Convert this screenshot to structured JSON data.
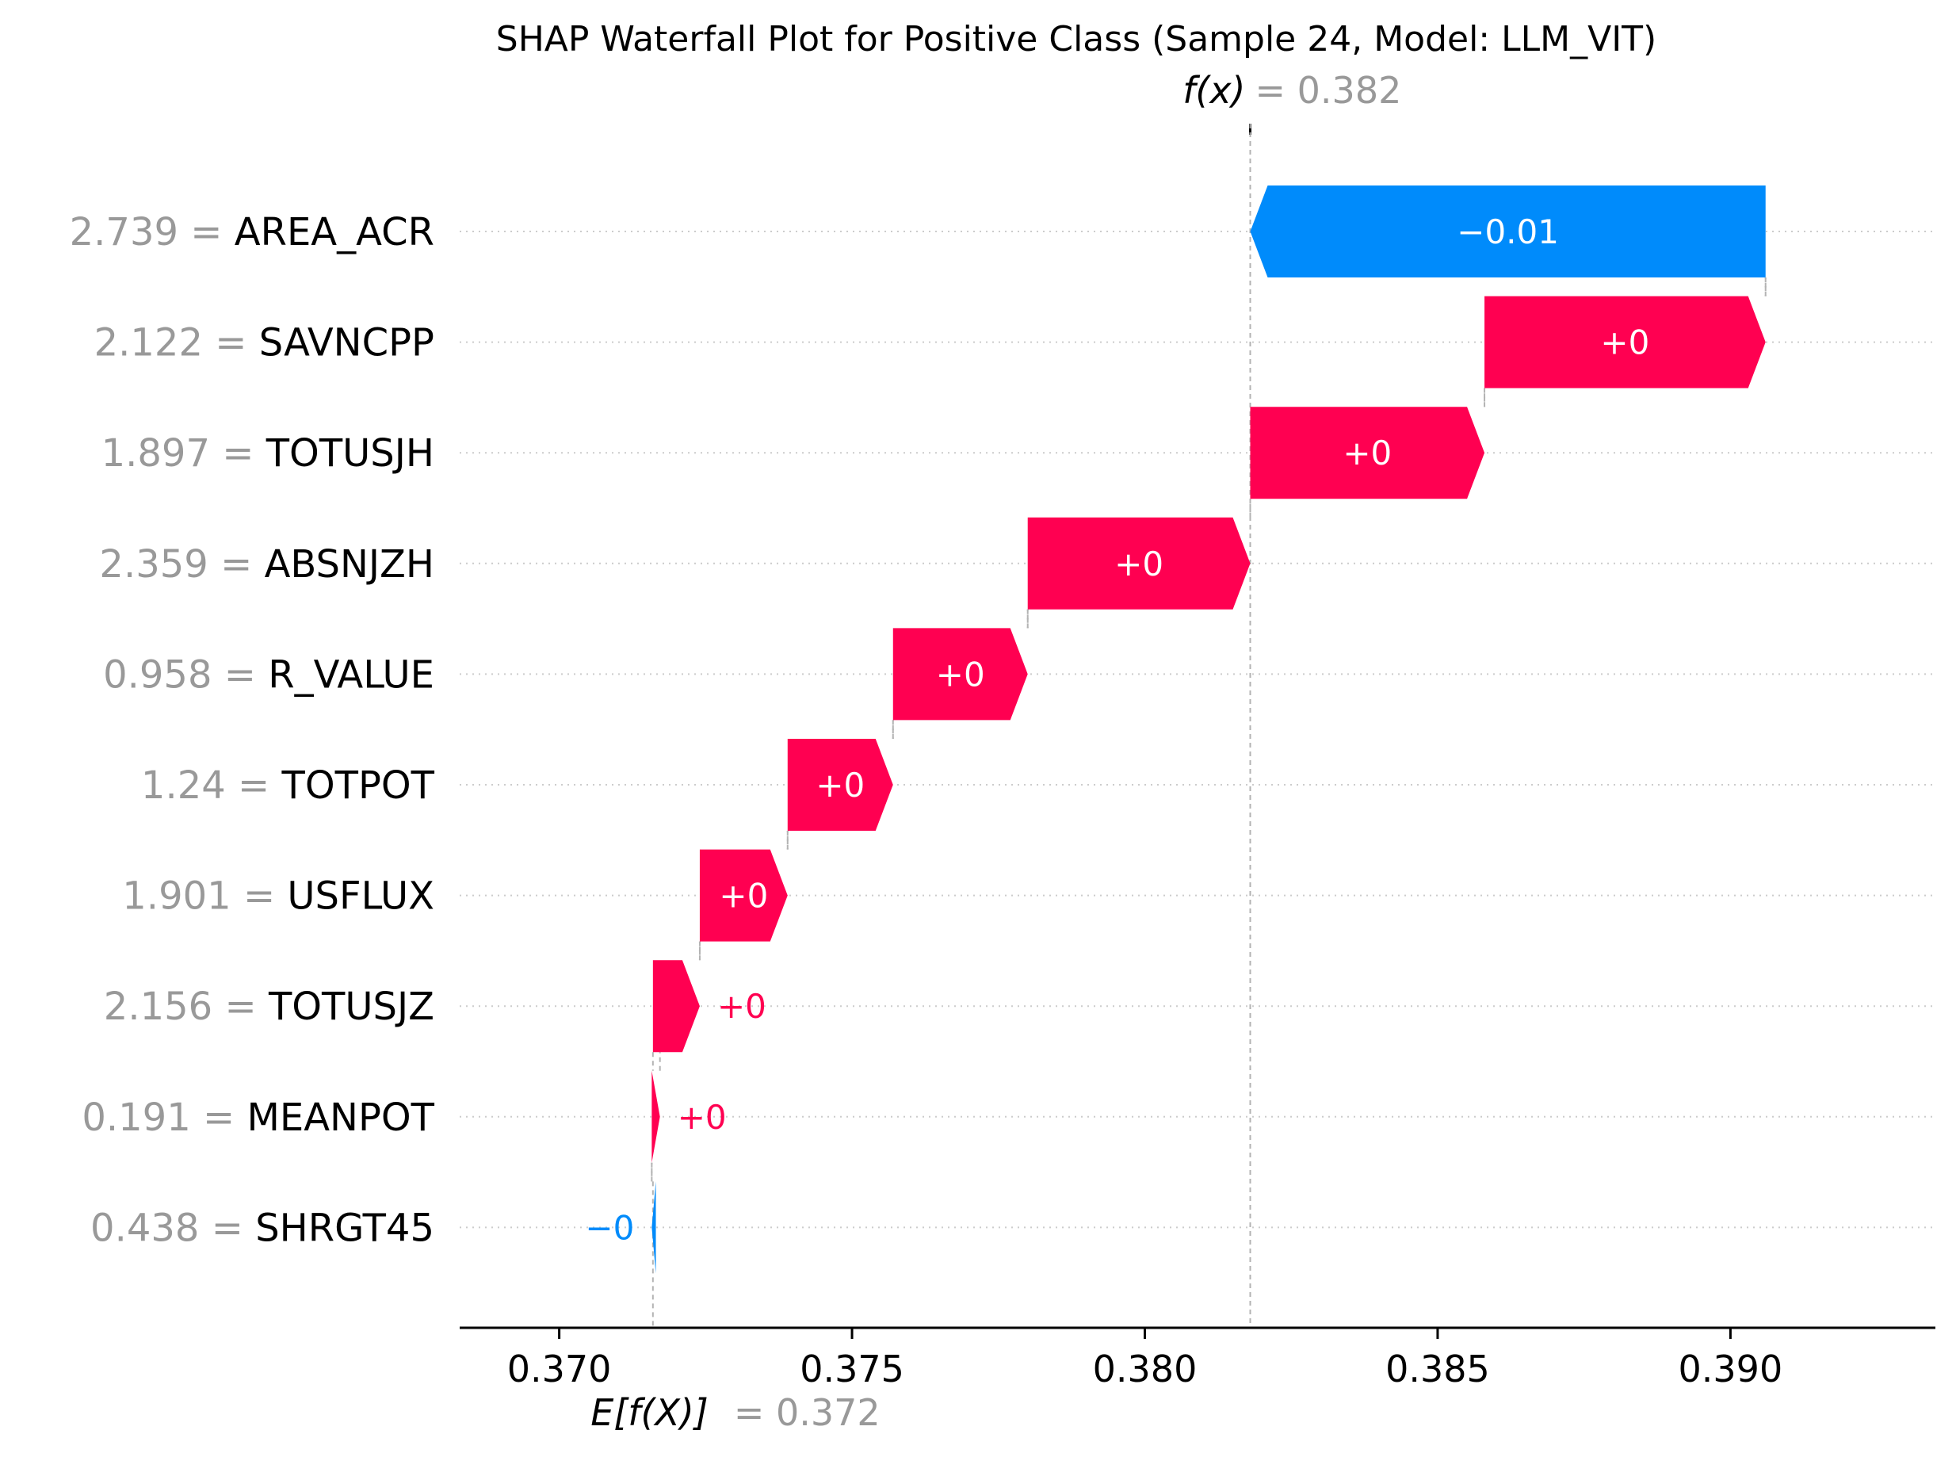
{
  "chart_data": {
    "type": "waterfall",
    "title": "SHAP Waterfall Plot for Positive Class (Sample 24, Model: LLM_VIT)",
    "fx": {
      "label": "f(x)",
      "value_text": "= 0.382",
      "value": 0.3818
    },
    "base": {
      "label": "E[f(X)]",
      "value_text": "= 0.372",
      "value": 0.3716
    },
    "xlim": [
      0.3683,
      0.3935
    ],
    "xticks": [
      {
        "value": 0.37,
        "label": "0.370"
      },
      {
        "value": 0.375,
        "label": "0.375"
      },
      {
        "value": 0.38,
        "label": "0.380"
      },
      {
        "value": 0.385,
        "label": "0.385"
      },
      {
        "value": 0.39,
        "label": "0.390"
      }
    ],
    "features": [
      {
        "name": "AREA_ACR",
        "value_text": "2.739 =",
        "start": 0.3906,
        "end": 0.3818,
        "shap_label": "−0.01",
        "sign": "neg",
        "label_inside": true
      },
      {
        "name": "SAVNCPP",
        "value_text": "2.122 =",
        "start": 0.3858,
        "end": 0.3906,
        "shap_label": "+0",
        "sign": "pos",
        "label_inside": true
      },
      {
        "name": "TOTUSJH",
        "value_text": "1.897 =",
        "start": 0.3818,
        "end": 0.3858,
        "shap_label": "+0",
        "sign": "pos",
        "label_inside": true
      },
      {
        "name": "ABSNJZH",
        "value_text": "2.359 =",
        "start": 0.378,
        "end": 0.3818,
        "shap_label": "+0",
        "sign": "pos",
        "label_inside": true
      },
      {
        "name": "R_VALUE",
        "value_text": "0.958 =",
        "start": 0.3757,
        "end": 0.378,
        "shap_label": "+0",
        "sign": "pos",
        "label_inside": true
      },
      {
        "name": "TOTPOT",
        "value_text": "1.24 =",
        "start": 0.3739,
        "end": 0.3757,
        "shap_label": "+0",
        "sign": "pos",
        "label_inside": true
      },
      {
        "name": "USFLUX",
        "value_text": "1.901 =",
        "start": 0.3724,
        "end": 0.3739,
        "shap_label": "+0",
        "sign": "pos",
        "label_inside": true
      },
      {
        "name": "TOTUSJZ",
        "value_text": "2.156 =",
        "start": 0.3716,
        "end": 0.3724,
        "shap_label": "+0",
        "sign": "pos",
        "label_inside": false
      },
      {
        "name": "MEANPOT",
        "value_text": "0.191 =",
        "start": 0.37158,
        "end": 0.37172,
        "shap_label": "+0",
        "sign": "pos",
        "label_inside": false
      },
      {
        "name": "SHRGT45",
        "value_text": "0.438 =",
        "start": 0.37165,
        "end": 0.37158,
        "shap_label": "−0",
        "sign": "neg",
        "label_inside": false
      }
    ],
    "colors": {
      "positive": "#ff0051",
      "negative": "#008bfb",
      "value_gray": "#999999",
      "text": "#000000",
      "dotted_line": "#cccccc",
      "dashed_line": "#b3b3b3",
      "axis": "#333333"
    },
    "grid": "dotted-row-guides"
  }
}
